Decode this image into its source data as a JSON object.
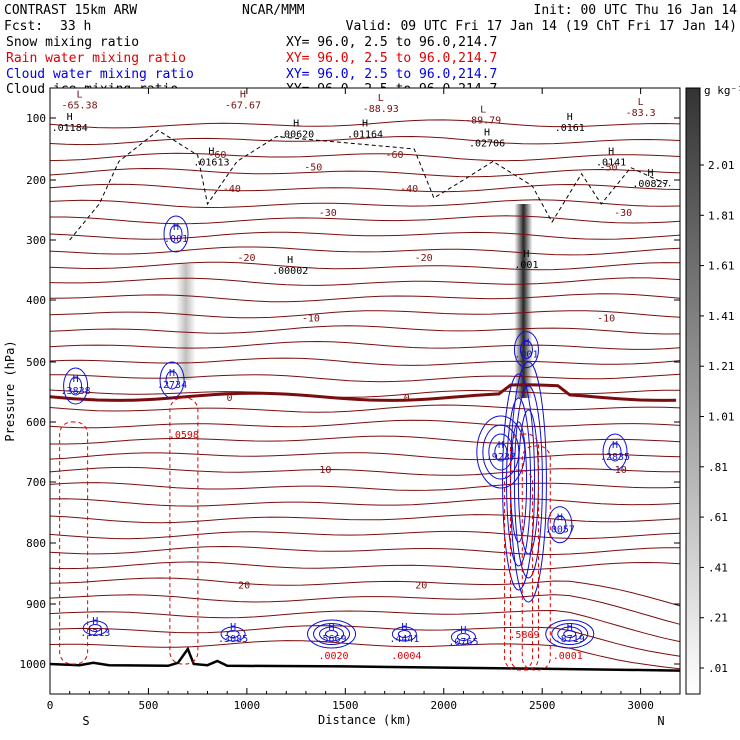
{
  "header": {
    "model": "CONTRAST 15km ARW",
    "center": "NCAR/MMM",
    "init": "Init: 00 UTC Thu 16 Jan 14",
    "fcst_label": "Fcst:",
    "fcst_value": "33 h",
    "valid": "Valid: 09 UTC Fri 17 Jan 14 (19 ChT Fri 17 Jan 14)"
  },
  "legend": [
    {
      "name": "Snow mixing ratio",
      "color": "#000000",
      "xy": "XY=  96.0,  2.5 to  96.0,214.7"
    },
    {
      "name": "Rain water mixing ratio",
      "color": "#e00000",
      "xy": "XY=  96.0,  2.5 to  96.0,214.7"
    },
    {
      "name": "Cloud water mixing ratio",
      "color": "#0000e0",
      "xy": "XY=  96.0,  2.5 to  96.0,214.7"
    },
    {
      "name": "Cloud ice mixing ratio",
      "color": "#000000",
      "xy": "XY=  96.0,  2.5 to  96.0,214.7"
    }
  ],
  "chart_data": {
    "type": "cross-section",
    "xlabel": "Distance (km)",
    "ylabel": "Pressure (hPa)",
    "xlim": [
      0,
      3200
    ],
    "ylim": [
      1050,
      60
    ],
    "x_ticks": [
      0,
      500,
      1000,
      1500,
      2000,
      2500,
      3000
    ],
    "y_ticks": [
      100,
      200,
      300,
      400,
      500,
      600,
      700,
      800,
      900,
      1000
    ],
    "end_labels": {
      "left": "S",
      "right": "N"
    },
    "colorbar": {
      "unit": "g kg⁻¹",
      "ticks": [
        "2.01",
        "1.81",
        "1.61",
        "1.41",
        "1.21",
        "1.01",
        ".81",
        ".61",
        ".41",
        ".21",
        ".01"
      ]
    },
    "temperature_contours": [
      {
        "label": "-60",
        "p": 160
      },
      {
        "label": "-50",
        "p": 180
      },
      {
        "label": "-40",
        "p": 215
      },
      {
        "label": "-30",
        "p": 255
      },
      {
        "label": "-20",
        "p": 330
      },
      {
        "label": "-10",
        "p": 430
      },
      {
        "label": "0",
        "p": 560
      },
      {
        "label": "10",
        "p": 680
      },
      {
        "label": "20",
        "p": 870
      }
    ],
    "highs_lows": [
      {
        "kind": "L",
        "value": "-65.38",
        "x": 150,
        "p": 75
      },
      {
        "kind": "H",
        "value": "-67.67",
        "x": 980,
        "p": 75
      },
      {
        "kind": "L",
        "value": "-88.93",
        "x": 1680,
        "p": 80
      },
      {
        "kind": "L",
        "value": "-89.79",
        "x": 2200,
        "p": 95
      },
      {
        "kind": "L",
        "value": "-83.3",
        "x": 3000,
        "p": 85
      }
    ],
    "snow_maxima": [
      {
        "value": ".01184",
        "x": 100,
        "p": 110
      },
      {
        "value": ".00620",
        "x": 1250,
        "p": 120
      },
      {
        "value": ".01164",
        "x": 1600,
        "p": 120
      },
      {
        "value": ".02706",
        "x": 2220,
        "p": 135
      },
      {
        "value": ".0161",
        "x": 2640,
        "p": 110
      },
      {
        "value": ".01613",
        "x": 820,
        "p": 165
      },
      {
        "value": ".0141",
        "x": 2850,
        "p": 165
      },
      {
        "value": ".00827",
        "x": 3050,
        "p": 200
      },
      {
        "value": ".00002",
        "x": 1220,
        "p": 345
      },
      {
        "value": ".001",
        "x": 2420,
        "p": 335
      }
    ],
    "cloud_water_maxima": [
      {
        "value": ".3838",
        "x": 130,
        "p": 540
      },
      {
        "value": ".2734",
        "x": 620,
        "p": 530
      },
      {
        "value": ".001",
        "x": 640,
        "p": 290
      },
      {
        "value": ".001",
        "x": 2420,
        "p": 480
      },
      {
        "value": ".9237",
        "x": 2290,
        "p": 650
      },
      {
        "value": ".2835",
        "x": 2870,
        "p": 650
      },
      {
        "value": ".0057",
        "x": 2590,
        "p": 770
      },
      {
        "value": ".1213",
        "x": 230,
        "p": 940
      },
      {
        "value": ".3085",
        "x": 930,
        "p": 950
      },
      {
        "value": ".5669",
        "x": 1430,
        "p": 950
      },
      {
        "value": ".4441",
        "x": 1800,
        "p": 950
      },
      {
        "value": ".0765",
        "x": 2100,
        "p": 955
      },
      {
        "value": ".8719",
        "x": 2640,
        "p": 950
      }
    ],
    "rain_maxima": [
      {
        "value": ".0598",
        "x": 680,
        "p": 620
      },
      {
        "value": ".5809",
        "x": 2410,
        "p": 950
      },
      {
        "value": ".0020",
        "x": 1440,
        "p": 985
      },
      {
        "value": ".0004",
        "x": 1810,
        "p": 985
      },
      {
        "value": ".0001",
        "x": 2630,
        "p": 985
      }
    ],
    "ice_bands": [
      {
        "x": 690,
        "p_top": 340,
        "p_bottom": 530
      },
      {
        "x": 2405,
        "p_top": 240,
        "p_bottom": 560
      }
    ]
  }
}
